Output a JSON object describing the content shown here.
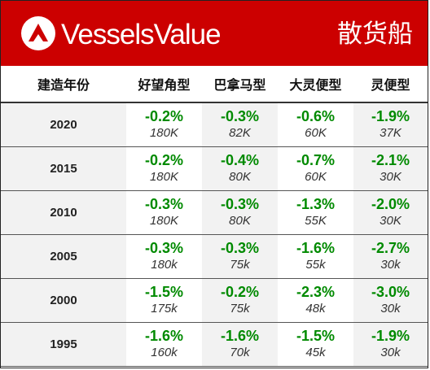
{
  "header": {
    "brand": "VesselsValue",
    "category": "散货船",
    "colors": {
      "banner": "#cc0000",
      "change": "#008a00"
    }
  },
  "table": {
    "columns": [
      "建造年份",
      "好望角型",
      "巴拿马型",
      "大灵便型",
      "灵便型"
    ],
    "rows": [
      {
        "year": "2020",
        "cells": [
          {
            "change": "-0.2%",
            "value": "180K"
          },
          {
            "change": "-0.3%",
            "value": "82K"
          },
          {
            "change": "-0.6%",
            "value": "60K"
          },
          {
            "change": "-1.9%",
            "value": "37K"
          }
        ]
      },
      {
        "year": "2015",
        "cells": [
          {
            "change": "-0.2%",
            "value": "180K"
          },
          {
            "change": "-0.4%",
            "value": "80K"
          },
          {
            "change": "-0.7%",
            "value": "60K"
          },
          {
            "change": "-2.1%",
            "value": "30K"
          }
        ]
      },
      {
        "year": "2010",
        "cells": [
          {
            "change": "-0.3%",
            "value": "180K"
          },
          {
            "change": "-0.3%",
            "value": "80K"
          },
          {
            "change": "-1.3%",
            "value": "55K"
          },
          {
            "change": "-2.0%",
            "value": "30K"
          }
        ]
      },
      {
        "year": "2005",
        "cells": [
          {
            "change": "-0.3%",
            "value": "180k"
          },
          {
            "change": "-0.3%",
            "value": "75k"
          },
          {
            "change": "-1.6%",
            "value": "55k"
          },
          {
            "change": "-2.7%",
            "value": "30k"
          }
        ]
      },
      {
        "year": "2000",
        "cells": [
          {
            "change": "-1.5%",
            "value": "175k"
          },
          {
            "change": "-0.2%",
            "value": "75k"
          },
          {
            "change": "-2.3%",
            "value": "48k"
          },
          {
            "change": "-3.0%",
            "value": "30k"
          }
        ]
      },
      {
        "year": "1995",
        "cells": [
          {
            "change": "-1.6%",
            "value": "160k"
          },
          {
            "change": "-1.6%",
            "value": "70k"
          },
          {
            "change": "-1.5%",
            "value": "45k"
          },
          {
            "change": "-1.9%",
            "value": "30k"
          }
        ]
      }
    ]
  }
}
